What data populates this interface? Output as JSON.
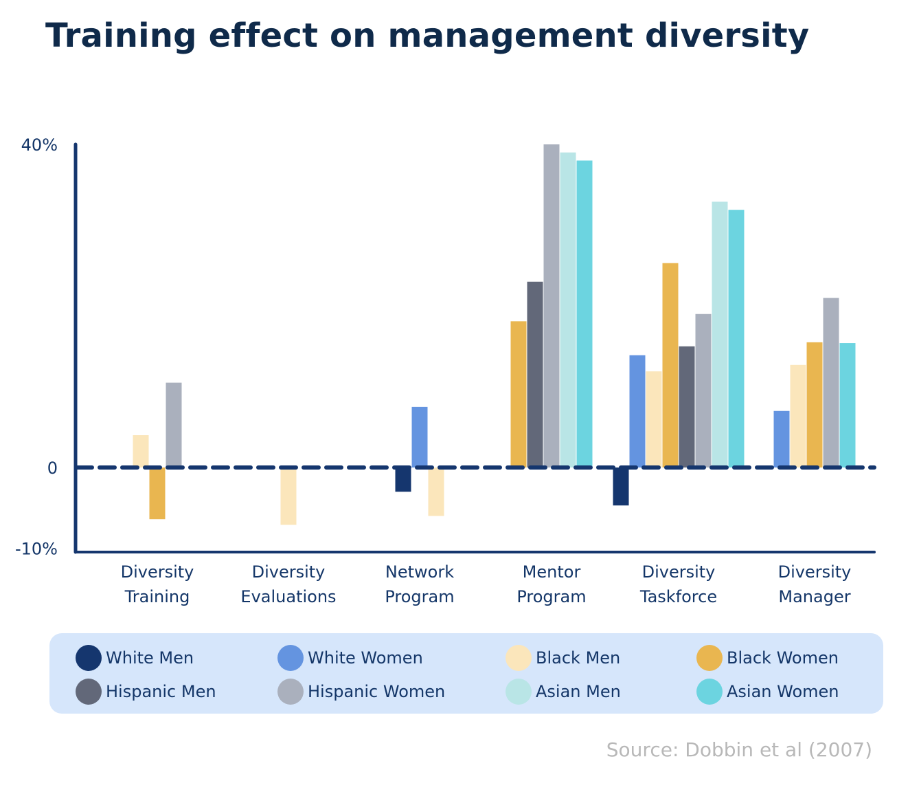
{
  "chart_data": {
    "type": "bar",
    "title": "Training effect on management diversity",
    "xlabel": "",
    "ylabel": "",
    "ylim": [
      -10,
      40
    ],
    "yticks": [
      {
        "value": 40,
        "label": "40%"
      },
      {
        "value": 0,
        "label": "0"
      },
      {
        "value": -10,
        "label": "-10%"
      }
    ],
    "grid": false,
    "zero_line": "dashed",
    "legend_position": "bottom",
    "categories": [
      [
        "Diversity",
        "Training"
      ],
      [
        "Diversity",
        "Evaluations"
      ],
      [
        "Network",
        "Program"
      ],
      [
        "Mentor",
        "Program"
      ],
      [
        "Diversity",
        "Taskforce"
      ],
      [
        "Diversity",
        "Manager"
      ]
    ],
    "series": [
      {
        "name": "White Men",
        "color": "#15366e",
        "values": [
          null,
          null,
          -3.0,
          null,
          -4.7,
          null
        ]
      },
      {
        "name": "White Women",
        "color": "#6494e0",
        "values": [
          null,
          null,
          7.5,
          null,
          13.9,
          7.0
        ]
      },
      {
        "name": "Black Men",
        "color": "#fbe6bb",
        "values": [
          4.0,
          -7.1,
          -6.0,
          null,
          11.9,
          12.7
        ]
      },
      {
        "name": "Black Women",
        "color": "#e9b650",
        "values": [
          -6.4,
          null,
          null,
          18.1,
          25.3,
          15.5
        ]
      },
      {
        "name": "Hispanic Men",
        "color": "#626879",
        "values": [
          null,
          null,
          null,
          23.0,
          15.0,
          null
        ]
      },
      {
        "name": "Hispanic Women",
        "color": "#aab0bd",
        "values": [
          10.5,
          null,
          null,
          40.0,
          19.0,
          21.0
        ]
      },
      {
        "name": "Asian Men",
        "color": "#b9e5e6",
        "values": [
          null,
          null,
          null,
          39.0,
          32.9,
          null
        ]
      },
      {
        "name": "Asian Women",
        "color": "#6cd4e0",
        "values": [
          null,
          null,
          null,
          38.0,
          31.9,
          15.4
        ]
      }
    ]
  },
  "legend": {
    "items": [
      {
        "label": "White Men",
        "color": "#15366e"
      },
      {
        "label": "White Women",
        "color": "#6494e0"
      },
      {
        "label": "Black Men",
        "color": "#fbe6bb"
      },
      {
        "label": "Black Women",
        "color": "#e9b650"
      },
      {
        "label": "Hispanic Men",
        "color": "#626879"
      },
      {
        "label": "Hispanic Women",
        "color": "#aab0bd"
      },
      {
        "label": "Asian Men",
        "color": "#b9e5e6"
      },
      {
        "label": "Asian Women",
        "color": "#6cd4e0"
      }
    ]
  },
  "source": "Source: Dobbin et al (2007)",
  "colors": {
    "axis": "#15366e",
    "text": "#143668",
    "title": "#0f2a4a",
    "legend_bg": "#d6e6fb"
  }
}
